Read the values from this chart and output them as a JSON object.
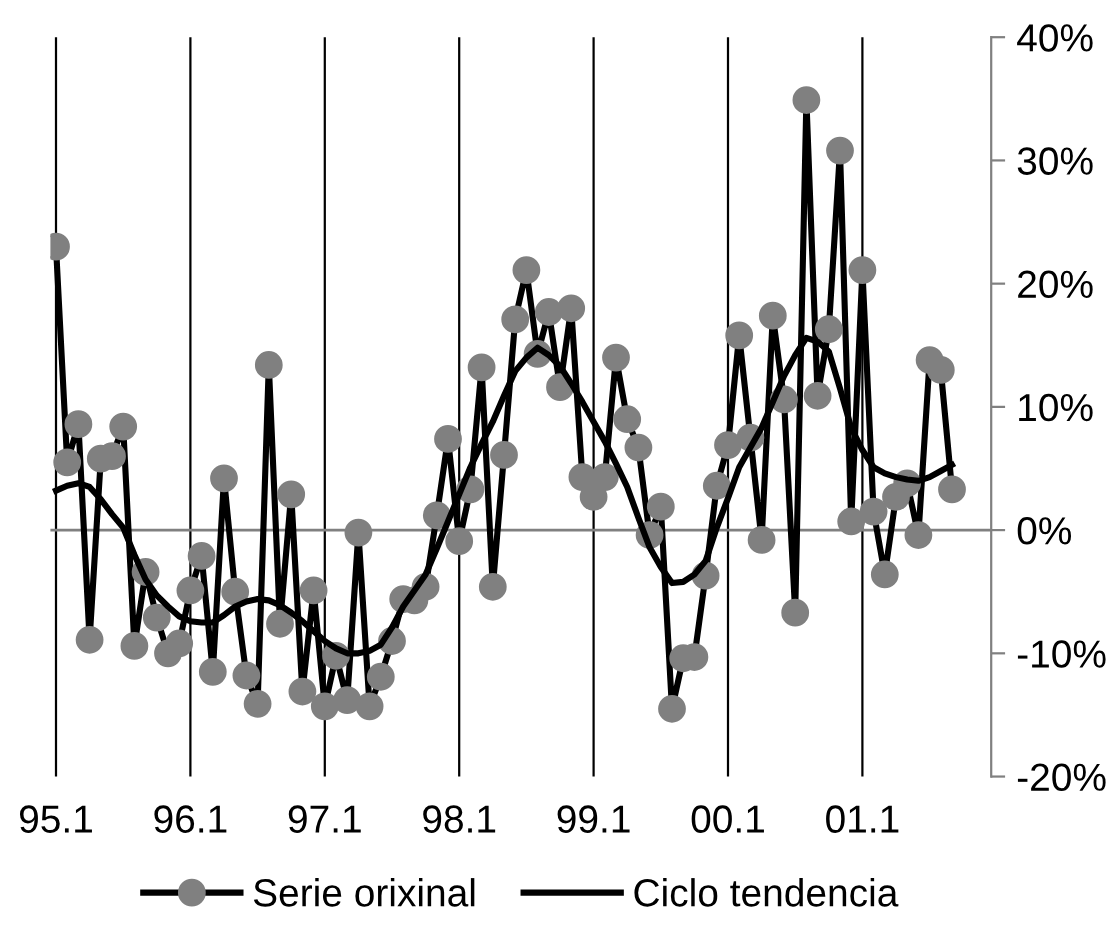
{
  "chart_data": {
    "type": "line",
    "categories": [
      "95.1",
      null,
      null,
      null,
      null,
      null,
      null,
      null,
      null,
      null,
      null,
      null,
      "96.1",
      null,
      null,
      null,
      null,
      null,
      null,
      null,
      null,
      null,
      null,
      null,
      "97.1",
      null,
      null,
      null,
      null,
      null,
      null,
      null,
      null,
      null,
      null,
      null,
      "98.1",
      null,
      null,
      null,
      null,
      null,
      null,
      null,
      null,
      null,
      null,
      null,
      "99.1",
      null,
      null,
      null,
      null,
      null,
      null,
      null,
      null,
      null,
      null,
      null,
      "00.1",
      null,
      null,
      null,
      null,
      null,
      null,
      null,
      null,
      null,
      null,
      null,
      "01.1",
      null,
      null,
      null,
      null,
      null,
      null,
      null,
      null
    ],
    "series": [
      {
        "name": "Serie orixinal",
        "color": "#808080",
        "marker": "circle",
        "values": [
          23,
          5.5,
          8.6,
          -8.9,
          5.8,
          6.0,
          8.4,
          -9.4,
          -3.4,
          -7.1,
          -10,
          -9.2,
          -4.9,
          -2.1,
          -11.5,
          4.2,
          -5.0,
          -11.8,
          -14.1,
          13.4,
          -7.6,
          2.9,
          -13.1,
          -4.9,
          -14.3,
          -10.2,
          -13.8,
          -0.2,
          -14.3,
          -11.9,
          -9.0,
          -5.6,
          -5.7,
          -4.6,
          1.2,
          7.4,
          -0.9,
          3.3,
          13.2,
          -4.6,
          6.1,
          17.1,
          21.1,
          14.3,
          17.7,
          11.6,
          18.0,
          4.3,
          2.7,
          4.3,
          14.0,
          9.0,
          6.7,
          -0.4,
          1.9,
          -14.5,
          -10.4,
          -10.3,
          -3.7,
          3.6,
          6.9,
          15.8,
          7.5,
          -0.8,
          17.4,
          10.6,
          -6.7,
          34.9,
          10.9,
          16.3,
          30.8,
          0.7,
          21.1,
          1.5,
          -3.6,
          2.7,
          3.8,
          -0.4,
          13.8,
          13.0,
          3.3
        ]
      },
      {
        "name": "Ciclo tendencia",
        "color": "#000000",
        "marker": "none",
        "values": [
          3.2,
          3.6,
          3.8,
          3.5,
          2.5,
          1.3,
          0.2,
          -2.0,
          -4.0,
          -5.3,
          -6.2,
          -7.0,
          -7.4,
          -7.5,
          -7.5,
          -6.9,
          -6.2,
          -5.8,
          -5.6,
          -5.7,
          -6.1,
          -6.7,
          -7.4,
          -8.2,
          -9.0,
          -9.6,
          -10.0,
          -10.0,
          -9.8,
          -9.3,
          -7.9,
          -6.2,
          -4.9,
          -3.6,
          -1.5,
          0.7,
          2.9,
          5.1,
          7.0,
          8.8,
          10.9,
          12.9,
          14.0,
          14.8,
          14.2,
          13.3,
          11.9,
          10.4,
          8.8,
          7.2,
          5.4,
          3.5,
          1.0,
          -1.4,
          -3.0,
          -4.3,
          -4.2,
          -3.6,
          -2.5,
          0.2,
          2.6,
          5.1,
          6.7,
          8.3,
          10.4,
          12.5,
          14.2,
          15.6,
          15.3,
          14.5,
          11.5,
          8.3,
          6.5,
          5.1,
          4.6,
          4.3,
          4.1,
          4.0,
          4.3,
          4.8,
          5.3
        ]
      }
    ],
    "ylim": [
      -20,
      40
    ],
    "yticks": [
      {
        "value": -20,
        "label": "-20%"
      },
      {
        "value": -10,
        "label": "-10%"
      },
      {
        "value": 0,
        "label": "0%"
      },
      {
        "value": 10,
        "label": "10%"
      },
      {
        "value": 20,
        "label": "20%"
      },
      {
        "value": 30,
        "label": "30%"
      },
      {
        "value": 40,
        "label": "40%"
      }
    ],
    "ref_lines": [
      {
        "axis": "y",
        "value": 0,
        "color": "#808080"
      }
    ],
    "grid": "x",
    "legend": "bottom",
    "line_style": "solid"
  }
}
